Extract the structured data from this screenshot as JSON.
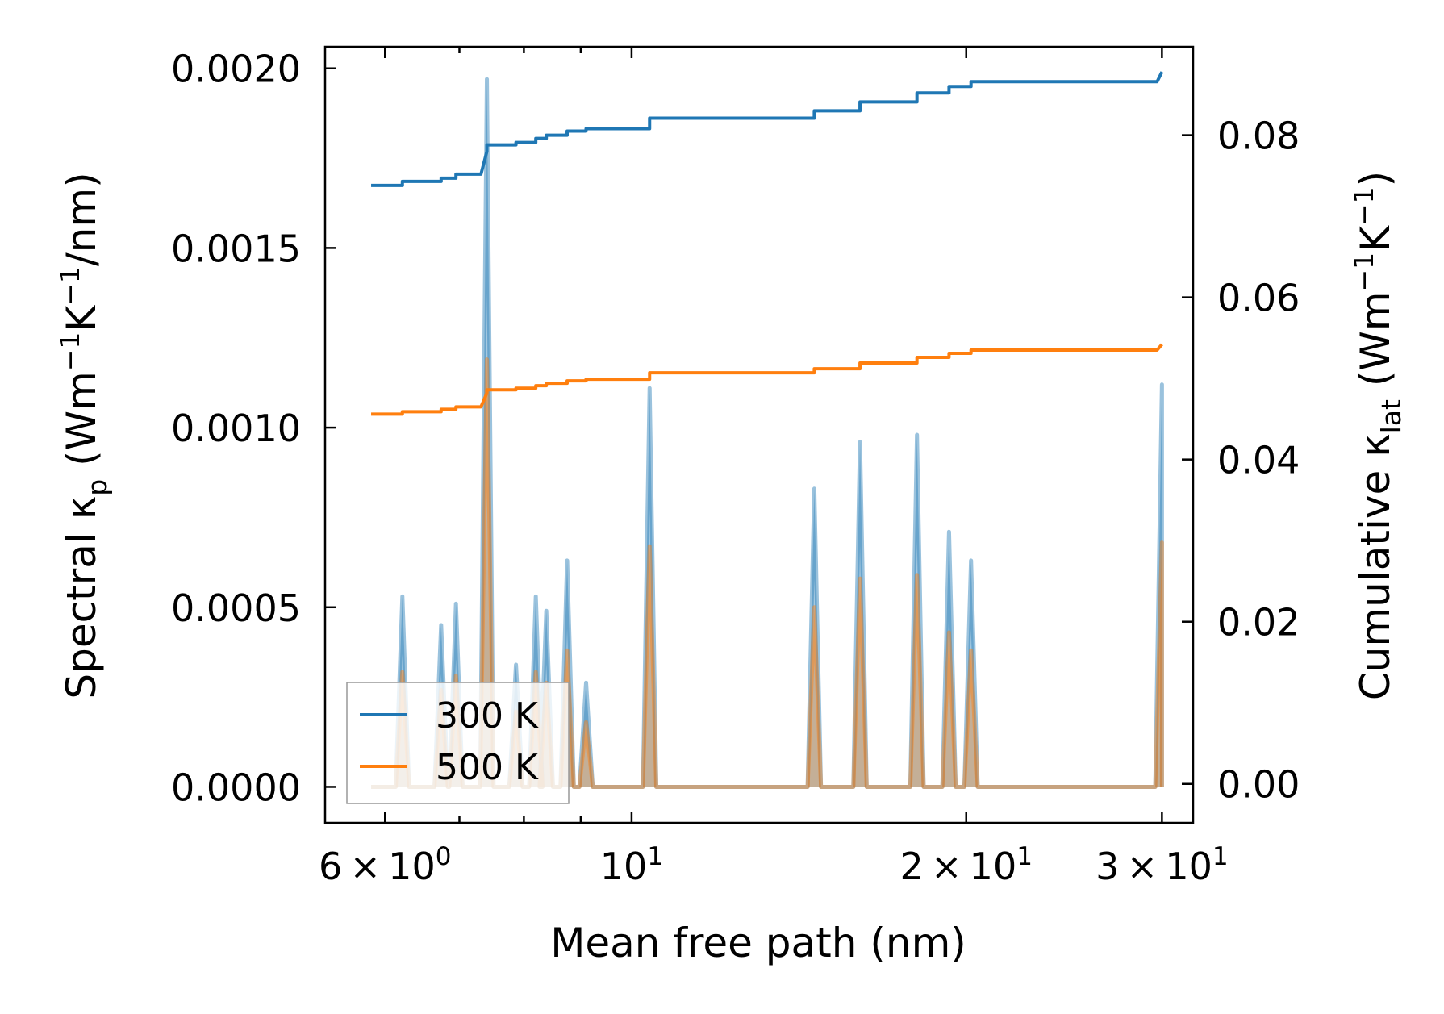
{
  "chart_data": {
    "type": "line",
    "xscale": "log",
    "xlim": [
      5.3,
      32.0
    ],
    "xlabel": "Mean free path (nm)",
    "ylabel_left": {
      "main": "Spectral κ",
      "sub": "p",
      "unit_open": " (Wm",
      "sup1": "−1",
      "mid": "K",
      "sup2": "−1",
      "unit_close": "/nm)"
    },
    "ylabel_right": {
      "main": "Cumulative κ",
      "sub": "lat",
      "unit_open": " (Wm",
      "sup1": "−1",
      "mid": "K",
      "sup2": "−1",
      "unit_close": ")"
    },
    "ylim_left": [
      -0.0001,
      0.00206
    ],
    "ylim_right": [
      -0.0048,
      0.0909
    ],
    "yticks_left": [
      {
        "v": 0.0,
        "label": "0.0000"
      },
      {
        "v": 0.0005,
        "label": "0.0005"
      },
      {
        "v": 0.001,
        "label": "0.0010"
      },
      {
        "v": 0.0015,
        "label": "0.0015"
      },
      {
        "v": 0.002,
        "label": "0.0020"
      }
    ],
    "yticks_right": [
      {
        "v": 0.0,
        "label": "0.00"
      },
      {
        "v": 0.02,
        "label": "0.02"
      },
      {
        "v": 0.04,
        "label": "0.04"
      },
      {
        "v": 0.06,
        "label": "0.06"
      },
      {
        "v": 0.08,
        "label": "0.08"
      }
    ],
    "xticks_major": [
      {
        "v": 6,
        "mant": "6",
        "sup": "0"
      },
      {
        "v": 10,
        "mant": "",
        "sup": "1"
      },
      {
        "v": 20,
        "mant": "2",
        "sup": "1"
      },
      {
        "v": 30,
        "mant": "3",
        "sup": "1"
      }
    ],
    "xticks_minor": [
      7,
      8,
      9
    ],
    "legend": {
      "position": "lower-left",
      "entries": [
        "300 K",
        "500 K"
      ]
    },
    "colors": {
      "s300": "#1f77b4",
      "s500": "#ff7f0e"
    },
    "spectral_series": [
      {
        "name": "300 K",
        "peaks": [
          [
            6.22,
            0.00053
          ],
          [
            6.74,
            0.00045
          ],
          [
            6.95,
            0.00051
          ],
          [
            7.41,
            0.00197
          ],
          [
            7.87,
            0.00034
          ],
          [
            8.2,
            0.00053
          ],
          [
            8.38,
            0.00049
          ],
          [
            8.75,
            0.00063
          ],
          [
            9.1,
            0.00029
          ],
          [
            10.38,
            0.00111
          ],
          [
            14.6,
            0.00083
          ],
          [
            16.05,
            0.00096
          ],
          [
            18.06,
            0.00098
          ],
          [
            19.3,
            0.00071
          ],
          [
            20.2,
            0.00063
          ],
          [
            30.0,
            0.00112
          ]
        ]
      },
      {
        "name": "500 K",
        "peaks": [
          [
            6.22,
            0.00032
          ],
          [
            6.74,
            0.00027
          ],
          [
            6.95,
            0.00031
          ],
          [
            7.41,
            0.00119
          ],
          [
            7.87,
            0.00021
          ],
          [
            8.2,
            0.00032
          ],
          [
            8.38,
            0.00029
          ],
          [
            8.75,
            0.00038
          ],
          [
            9.1,
            0.00018
          ],
          [
            10.38,
            0.00067
          ],
          [
            14.6,
            0.0005
          ],
          [
            16.05,
            0.00058
          ],
          [
            18.06,
            0.00059
          ],
          [
            19.3,
            0.00043
          ],
          [
            20.2,
            0.00038
          ],
          [
            30.0,
            0.00068
          ]
        ]
      }
    ],
    "cumulative_series": [
      {
        "name": "300 K",
        "points": [
          [
            5.83,
            0.0738
          ],
          [
            6.22,
            0.0738
          ],
          [
            6.22,
            0.0743
          ],
          [
            6.74,
            0.0743
          ],
          [
            6.74,
            0.0747
          ],
          [
            6.95,
            0.0747
          ],
          [
            6.95,
            0.0752
          ],
          [
            7.32,
            0.0752
          ],
          [
            7.41,
            0.078
          ],
          [
            7.41,
            0.0788
          ],
          [
            7.87,
            0.0788
          ],
          [
            7.87,
            0.0791
          ],
          [
            8.2,
            0.0791
          ],
          [
            8.2,
            0.0796
          ],
          [
            8.38,
            0.0796
          ],
          [
            8.38,
            0.08
          ],
          [
            8.75,
            0.08
          ],
          [
            8.75,
            0.0805
          ],
          [
            9.1,
            0.0805
          ],
          [
            9.1,
            0.0808
          ],
          [
            10.38,
            0.0808
          ],
          [
            10.38,
            0.0821
          ],
          [
            14.6,
            0.0821
          ],
          [
            14.6,
            0.083
          ],
          [
            16.05,
            0.083
          ],
          [
            16.05,
            0.0841
          ],
          [
            18.06,
            0.0841
          ],
          [
            18.06,
            0.0852
          ],
          [
            19.3,
            0.0852
          ],
          [
            19.3,
            0.086
          ],
          [
            20.2,
            0.086
          ],
          [
            20.2,
            0.0866
          ],
          [
            29.7,
            0.0866
          ],
          [
            30.0,
            0.0878
          ]
        ]
      },
      {
        "name": "500 K",
        "points": [
          [
            5.83,
            0.0456
          ],
          [
            6.22,
            0.0456
          ],
          [
            6.22,
            0.0459
          ],
          [
            6.74,
            0.0459
          ],
          [
            6.74,
            0.0462
          ],
          [
            6.95,
            0.0462
          ],
          [
            6.95,
            0.0465
          ],
          [
            7.32,
            0.0465
          ],
          [
            7.41,
            0.0482
          ],
          [
            7.41,
            0.0486
          ],
          [
            7.87,
            0.0486
          ],
          [
            7.87,
            0.0488
          ],
          [
            8.2,
            0.0488
          ],
          [
            8.2,
            0.0491
          ],
          [
            8.38,
            0.0491
          ],
          [
            8.38,
            0.0494
          ],
          [
            8.75,
            0.0494
          ],
          [
            8.75,
            0.0497
          ],
          [
            9.1,
            0.0497
          ],
          [
            9.1,
            0.0499
          ],
          [
            10.38,
            0.0499
          ],
          [
            10.38,
            0.0507
          ],
          [
            14.6,
            0.0507
          ],
          [
            14.6,
            0.0512
          ],
          [
            16.05,
            0.0512
          ],
          [
            16.05,
            0.0519
          ],
          [
            18.06,
            0.0519
          ],
          [
            18.06,
            0.0526
          ],
          [
            19.3,
            0.0526
          ],
          [
            19.3,
            0.0531
          ],
          [
            20.2,
            0.0531
          ],
          [
            20.2,
            0.0535
          ],
          [
            29.7,
            0.0535
          ],
          [
            30.0,
            0.0542
          ]
        ]
      }
    ]
  }
}
